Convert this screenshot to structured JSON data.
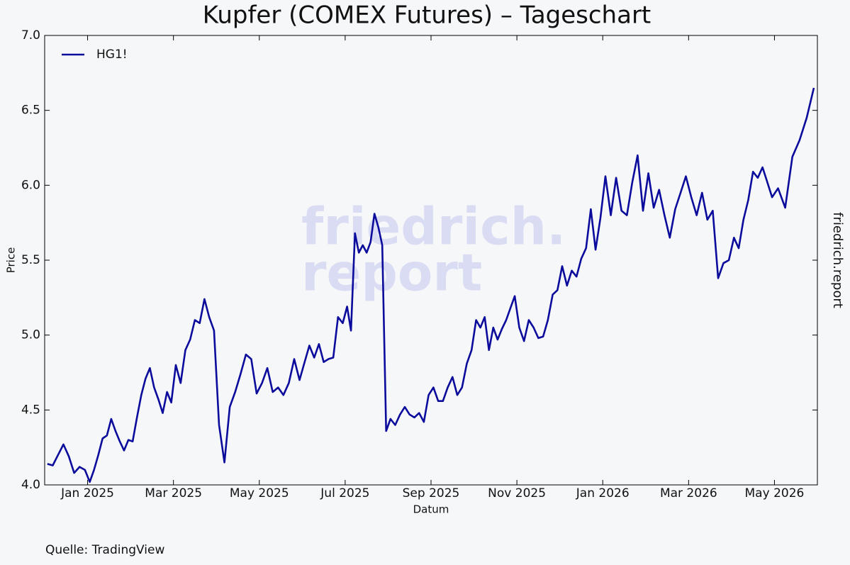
{
  "chart_data": {
    "type": "line",
    "title": "Kupfer (COMEX Futures) – Tageschart",
    "xlabel": "Datum",
    "ylabel": "Price",
    "source": "Quelle: TradingView",
    "side_label": "friedrich.report",
    "watermark": [
      "friedrich.",
      "report"
    ],
    "legend": "upper left",
    "grid": false,
    "xlim": [
      "2024-12",
      "2026-05"
    ],
    "xticks": [
      {
        "value": "2025-01",
        "label": "Jan 2025"
      },
      {
        "value": "2025-03",
        "label": "Mar 2025"
      },
      {
        "value": "2025-05",
        "label": "May 2025"
      },
      {
        "value": "2025-07",
        "label": "Jul 2025"
      },
      {
        "value": "2025-09",
        "label": "Sep 2025"
      },
      {
        "value": "2025-11",
        "label": "Nov 2025"
      },
      {
        "value": "2026-01",
        "label": "Jan 2026"
      },
      {
        "value": "2026-03",
        "label": "Mar 2026"
      },
      {
        "value": "2026-05",
        "label": "May 2026"
      }
    ],
    "ylim": [
      4,
      7
    ],
    "yticks": [
      {
        "value": 4,
        "label": "4.0"
      },
      4.5,
      {
        "value": 5,
        "label": "5.0"
      },
      5.5,
      {
        "value": 6,
        "label": "6.0"
      },
      6.5,
      {
        "value": 7,
        "label": "7.0"
      }
    ],
    "x": [
      "2024-12",
      "2024-12",
      "2024-12",
      "2024-12",
      "2024-12",
      "2024-12",
      "2024-12",
      "2024-12",
      "2025-01",
      "2025-01",
      "2025-01",
      "2025-01",
      "2025-01",
      "2025-01",
      "2025-01",
      "2025-01",
      "2025-01",
      "2025-01",
      "2025-02",
      "2025-02",
      "2025-02",
      "2025-02",
      "2025-02",
      "2025-02",
      "2025-02",
      "2025-02",
      "2025-02",
      "2025-02",
      "2025-03",
      "2025-03",
      "2025-03",
      "2025-03",
      "2025-03",
      "2025-03",
      "2025-03",
      "2025-03",
      "2025-03",
      "2025-04",
      "2025-04",
      "2025-04",
      "2025-04",
      "2025-04",
      "2025-04",
      "2025-04",
      "2025-04",
      "2025-05",
      "2025-05",
      "2025-05",
      "2025-05",
      "2025-05",
      "2025-05",
      "2025-05",
      "2025-05",
      "2025-06",
      "2025-06",
      "2025-06",
      "2025-06",
      "2025-06",
      "2025-06",
      "2025-06",
      "2025-06",
      "2025-06",
      "2025-07",
      "2025-07",
      "2025-07",
      "2025-07",
      "2025-07",
      "2025-07",
      "2025-07",
      "2025-07",
      "2025-07",
      "2025-07",
      "2025-07",
      "2025-08",
      "2025-08",
      "2025-08",
      "2025-08",
      "2025-08",
      "2025-08",
      "2025-08",
      "2025-08",
      "2025-08",
      "2025-09",
      "2025-09",
      "2025-09",
      "2025-09",
      "2025-09",
      "2025-09",
      "2025-09",
      "2025-09",
      "2025-09",
      "2025-10",
      "2025-10",
      "2025-10",
      "2025-10",
      "2025-10",
      "2025-10",
      "2025-10",
      "2025-10",
      "2025-10",
      "2025-10",
      "2025-11",
      "2025-11",
      "2025-11",
      "2025-11",
      "2025-11",
      "2025-11",
      "2025-11",
      "2025-11",
      "2025-11",
      "2025-12",
      "2025-12",
      "2025-12",
      "2025-12",
      "2025-12",
      "2025-12",
      "2025-12",
      "2025-12",
      "2025-12",
      "2026-01",
      "2026-01",
      "2026-01",
      "2026-01",
      "2026-01",
      "2026-01",
      "2026-01",
      "2026-01",
      "2026-02",
      "2026-02",
      "2026-02",
      "2026-02",
      "2026-02",
      "2026-02",
      "2026-02",
      "2026-02",
      "2026-03",
      "2026-03",
      "2026-03",
      "2026-03",
      "2026-03",
      "2026-03",
      "2026-03",
      "2026-03",
      "2026-04",
      "2026-04",
      "2026-04",
      "2026-04",
      "2026-04",
      "2026-04",
      "2026-04",
      "2026-04",
      "2026-04",
      "2026-05",
      "2026-05",
      "2026-05",
      "2026-05",
      "2026-05",
      "2026-05"
    ],
    "series": [
      {
        "name": "HG1!",
        "color": "#0b0b9c",
        "values": [
          4.14,
          4.13,
          4.2,
          4.27,
          4.19,
          4.08,
          4.12,
          4.1,
          4.02,
          4.1,
          4.2,
          4.31,
          4.33,
          4.44,
          4.36,
          4.29,
          4.23,
          4.3,
          4.29,
          4.45,
          4.6,
          4.71,
          4.78,
          4.65,
          4.57,
          4.48,
          4.62,
          4.55,
          4.8,
          4.68,
          4.9,
          4.97,
          5.1,
          5.08,
          5.24,
          5.12,
          5.03,
          4.4,
          4.15,
          4.52,
          4.62,
          4.74,
          4.87,
          4.84,
          4.61,
          4.68,
          4.78,
          4.62,
          4.65,
          4.6,
          4.68,
          4.84,
          4.7,
          4.82,
          4.93,
          4.85,
          4.94,
          4.82,
          4.84,
          4.85,
          5.12,
          5.08,
          5.19,
          5.03,
          5.68,
          5.55,
          5.6,
          5.55,
          5.62,
          5.81,
          5.72,
          5.6,
          4.36,
          4.44,
          4.4,
          4.47,
          4.52,
          4.47,
          4.45,
          4.48,
          4.42,
          4.6,
          4.65,
          4.56,
          4.56,
          4.65,
          4.72,
          4.6,
          4.65,
          4.81,
          4.9,
          5.1,
          5.05,
          5.12,
          4.9,
          5.05,
          4.97,
          5.04,
          5.1,
          5.18,
          5.26,
          5.05,
          4.96,
          5.1,
          5.05,
          4.98,
          4.99,
          5.1,
          5.27,
          5.3,
          5.46,
          5.33,
          5.43,
          5.39,
          5.51,
          5.58,
          5.84,
          5.57,
          5.78,
          6.06,
          5.8,
          6.05,
          5.83,
          5.8,
          6.02,
          6.2,
          5.83,
          6.08,
          5.85,
          5.97,
          5.8,
          5.65,
          5.84,
          5.95,
          6.06,
          5.92,
          5.8,
          5.95,
          5.77,
          5.83,
          5.38,
          5.48,
          5.5,
          5.65,
          5.58,
          5.77,
          5.9,
          6.09,
          6.05,
          6.12,
          6.02,
          5.92,
          5.98,
          5.85,
          6.19,
          6.3,
          6.45,
          6.65
        ]
      }
    ]
  }
}
